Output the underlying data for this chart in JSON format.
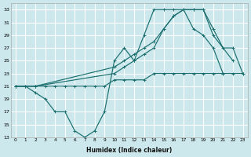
{
  "xlabel": "Humidex (Indice chaleur)",
  "bg_color": "#cce8ec",
  "grid_color": "#ffffff",
  "line_color": "#1a6e6e",
  "xlim": [
    -0.5,
    23.5
  ],
  "ylim": [
    13,
    34
  ],
  "xticks": [
    0,
    1,
    2,
    3,
    4,
    5,
    6,
    7,
    8,
    9,
    10,
    11,
    12,
    13,
    14,
    15,
    16,
    17,
    18,
    19,
    20,
    21,
    22,
    23
  ],
  "yticks": [
    13,
    15,
    17,
    19,
    21,
    23,
    25,
    27,
    29,
    31,
    33
  ],
  "lines": [
    {
      "x": [
        0,
        1,
        2,
        3,
        4,
        5,
        6,
        7,
        8,
        9,
        10,
        11,
        12,
        13,
        14,
        15,
        16,
        17,
        18,
        19,
        20,
        21
      ],
      "y": [
        21,
        21,
        20,
        19,
        17,
        17,
        14,
        13,
        14,
        17,
        25,
        27,
        25,
        29,
        33,
        33,
        33,
        33,
        30,
        29,
        27,
        23
      ]
    },
    {
      "x": [
        0,
        1,
        2,
        3,
        4,
        5,
        6,
        7,
        8,
        9,
        10,
        11,
        12,
        13,
        14,
        15,
        16,
        17,
        18,
        19,
        20,
        21,
        22,
        23
      ],
      "y": [
        21,
        21,
        21,
        21,
        21,
        21,
        21,
        21,
        21,
        21,
        22,
        22,
        22,
        22,
        23,
        23,
        23,
        23,
        23,
        23,
        23,
        23,
        23,
        23
      ]
    },
    {
      "x": [
        0,
        2,
        10,
        11,
        12,
        13,
        14,
        15,
        16,
        17,
        18,
        19,
        20,
        21,
        22,
        23
      ],
      "y": [
        21,
        21,
        24,
        25,
        26,
        27,
        28,
        30,
        32,
        33,
        33,
        33,
        30,
        27,
        27,
        23
      ]
    },
    {
      "x": [
        0,
        2,
        10,
        11,
        12,
        13,
        14,
        15,
        16,
        17,
        18,
        19,
        20,
        22
      ],
      "y": [
        21,
        21,
        23,
        24,
        25,
        26,
        27,
        30,
        32,
        33,
        33,
        33,
        29,
        25
      ]
    }
  ]
}
